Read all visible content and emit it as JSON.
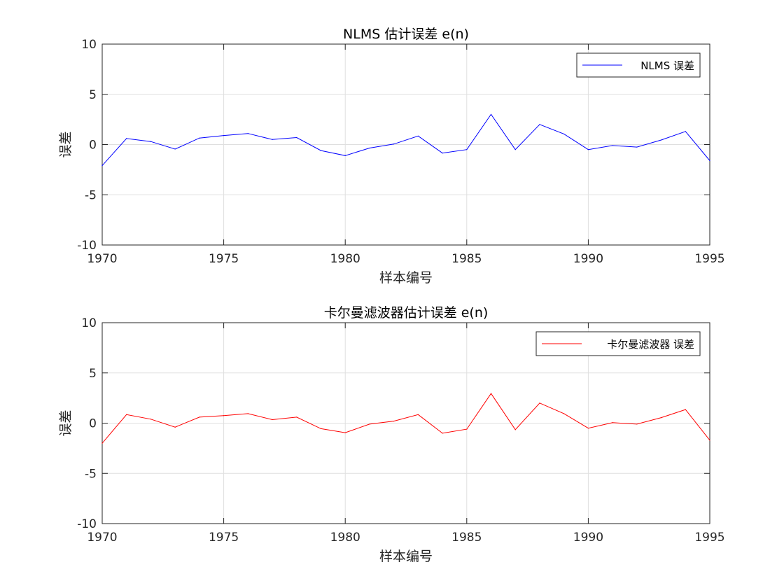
{
  "chart_data": [
    {
      "type": "line",
      "title": "NLMS 估计误差 e(n)",
      "xlabel": "样本编号",
      "ylabel": "误差",
      "xlim": [
        1970,
        1995
      ],
      "ylim": [
        -10,
        10
      ],
      "xticks": [
        1970,
        1975,
        1980,
        1985,
        1990,
        1995
      ],
      "yticks": [
        10,
        5,
        0,
        -5,
        -10
      ],
      "grid": true,
      "legend_location": "top-right",
      "series": [
        {
          "name": "NLMS 误差",
          "color": "#0000ff",
          "x": [
            1970,
            1971,
            1972,
            1973,
            1974,
            1975,
            1976,
            1977,
            1978,
            1979,
            1980,
            1981,
            1982,
            1983,
            1984,
            1985,
            1986,
            1987,
            1988,
            1989,
            1990,
            1991,
            1992,
            1993,
            1994,
            1995
          ],
          "values": [
            -2.1,
            0.6,
            0.3,
            -0.45,
            0.65,
            0.9,
            1.1,
            0.5,
            0.7,
            -0.6,
            -1.1,
            -0.35,
            0.05,
            0.85,
            -0.85,
            -0.5,
            3.0,
            -0.5,
            2.0,
            1.05,
            -0.5,
            -0.1,
            -0.25,
            0.45,
            1.3,
            -1.6
          ]
        }
      ]
    },
    {
      "type": "line",
      "title": "卡尔曼滤波器估计误差 e(n)",
      "xlabel": "样本编号",
      "ylabel": "误差",
      "xlim": [
        1970,
        1995
      ],
      "ylim": [
        -10,
        10
      ],
      "xticks": [
        1970,
        1975,
        1980,
        1985,
        1990,
        1995
      ],
      "yticks": [
        10,
        5,
        0,
        -5,
        -10
      ],
      "grid": true,
      "legend_location": "top-right",
      "series": [
        {
          "name": "卡尔曼滤波器 误差",
          "color": "#ff0000",
          "x": [
            1970,
            1971,
            1972,
            1973,
            1974,
            1975,
            1976,
            1977,
            1978,
            1979,
            1980,
            1981,
            1982,
            1983,
            1984,
            1985,
            1986,
            1987,
            1988,
            1989,
            1990,
            1991,
            1992,
            1993,
            1994,
            1995
          ],
          "values": [
            -2.0,
            0.85,
            0.4,
            -0.4,
            0.6,
            0.75,
            0.95,
            0.35,
            0.6,
            -0.55,
            -0.95,
            -0.1,
            0.2,
            0.85,
            -1.0,
            -0.6,
            2.95,
            -0.65,
            2.0,
            0.95,
            -0.5,
            0.05,
            -0.1,
            0.55,
            1.35,
            -1.7
          ]
        }
      ]
    }
  ]
}
